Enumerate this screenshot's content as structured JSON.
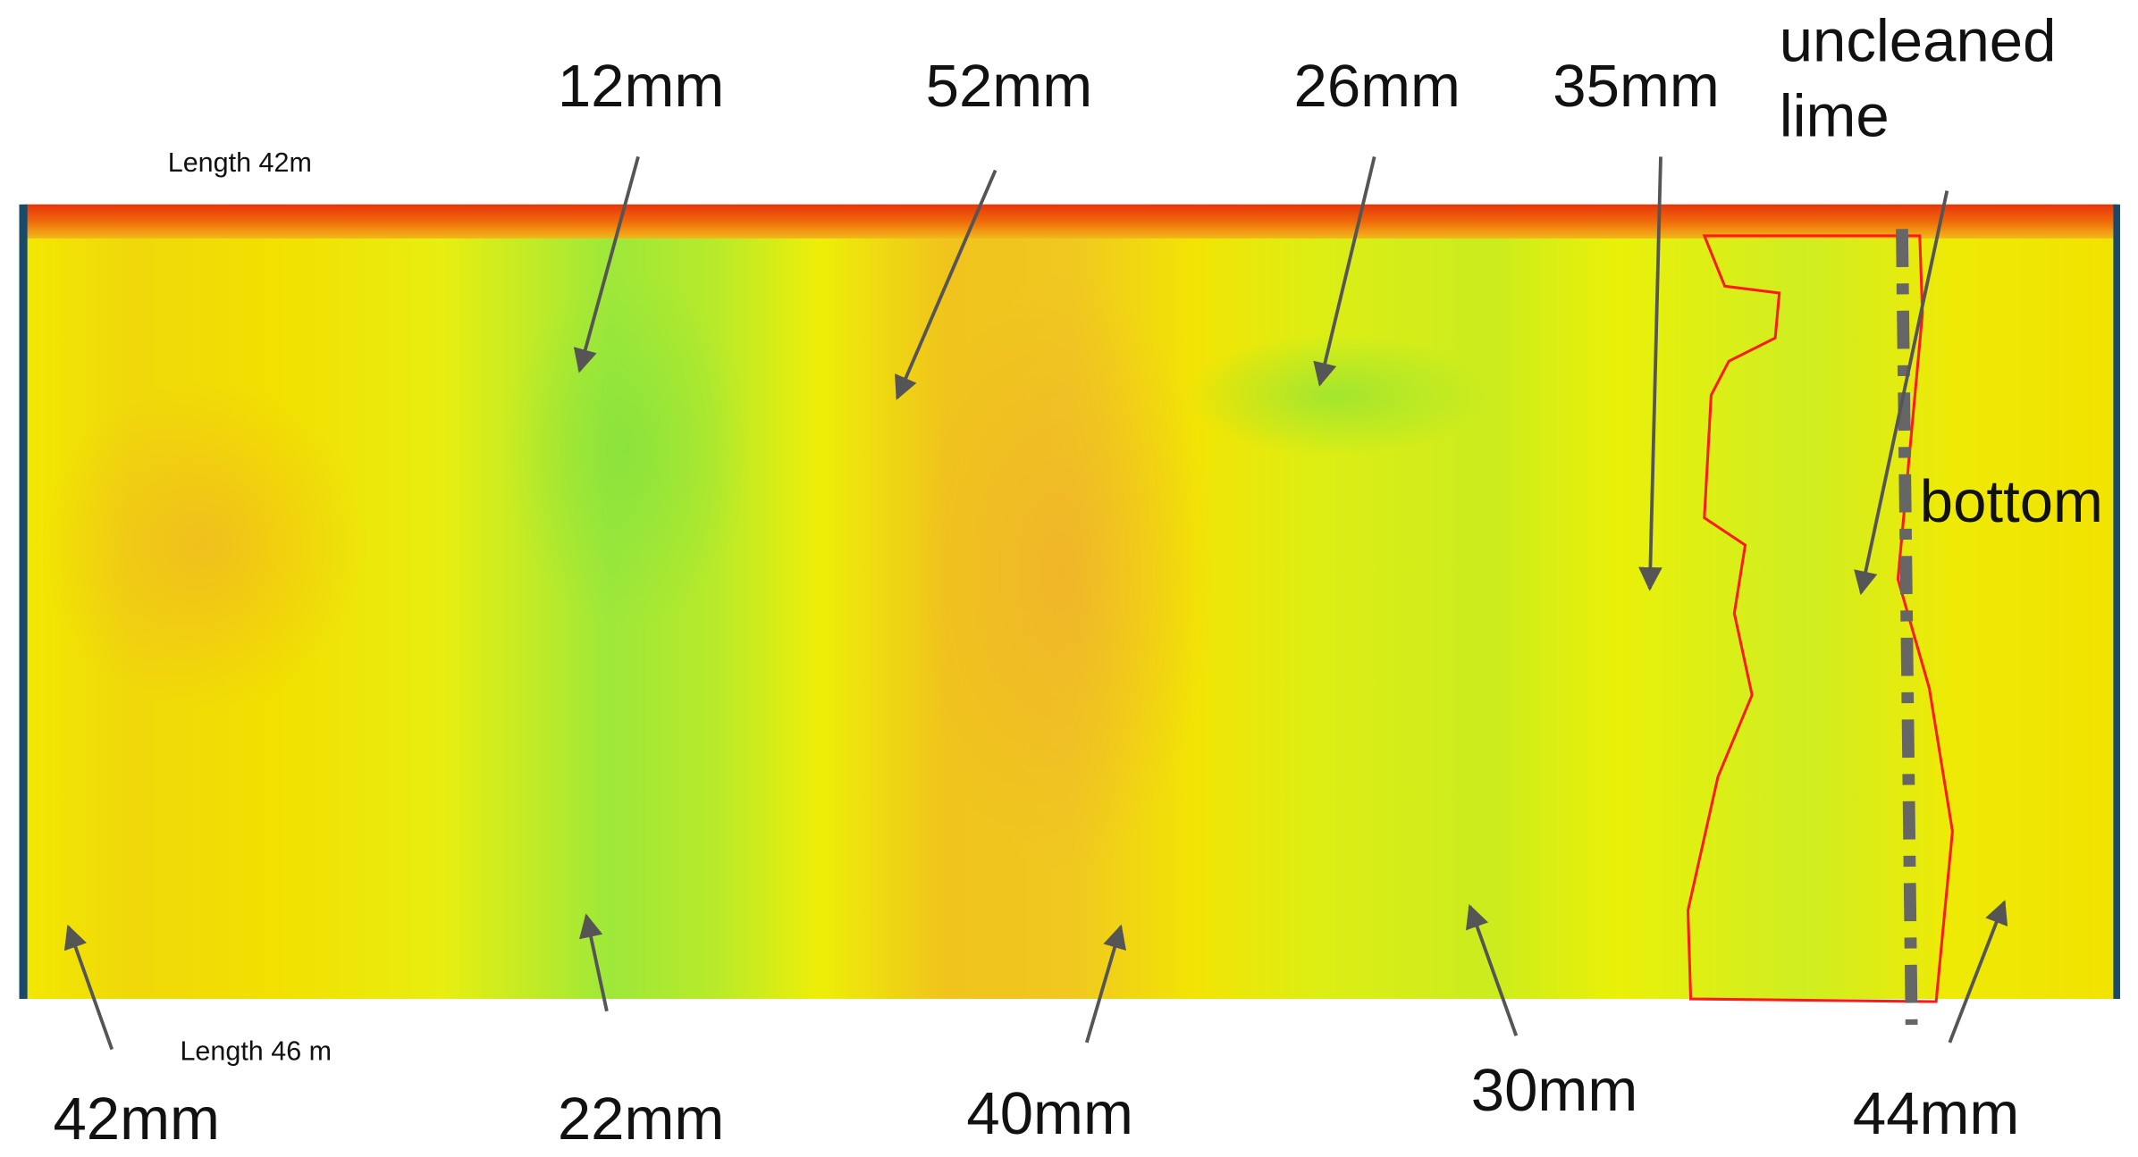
{
  "lengths": {
    "top": "Length 42m",
    "bottom": "Length 46 m"
  },
  "annotations": [
    {
      "text": "12mm"
    },
    {
      "text": "52mm"
    },
    {
      "text": "26mm"
    },
    {
      "text": "35mm"
    },
    {
      "text": "42mm"
    },
    {
      "text": "22mm"
    },
    {
      "text": "40mm"
    },
    {
      "text": "30mm"
    },
    {
      "text": "44mm"
    }
  ],
  "region_label": {
    "lines": [
      "uncleaned",
      "lime"
    ]
  },
  "axis_label": "bottom"
}
